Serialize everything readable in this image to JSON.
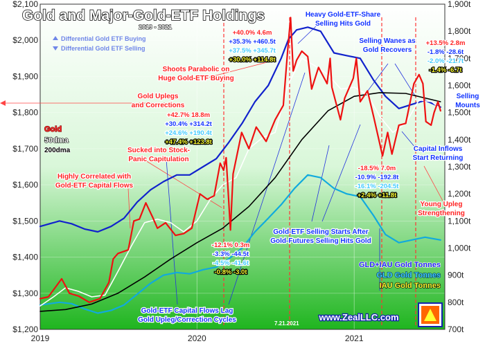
{
  "chart_data": {
    "type": "line",
    "title": "Gold and Major-Gold-ETF Holdings",
    "subtitle": "2019 - 2021",
    "x_ticks": [
      "2019",
      "2020",
      "2021"
    ],
    "x_range": [
      "2019-01-01",
      "2021-07-31"
    ],
    "y_left": {
      "range": [
        1200,
        2100
      ],
      "ticks": [
        1200,
        1300,
        1400,
        1500,
        1600,
        1700,
        1800,
        1900,
        2000,
        2100
      ],
      "tick_labels": [
        "$1,200",
        "$1,300",
        "$1,400",
        "$1,500",
        "$1,600",
        "$1,700",
        "$1,800",
        "$1,900",
        "$2,000",
        "$2,100"
      ]
    },
    "y_right": {
      "range": [
        700,
        1900
      ],
      "ticks": [
        700,
        800,
        900,
        1000,
        1100,
        1200,
        1300,
        1400,
        1500,
        1600,
        1700,
        1800,
        1900
      ],
      "tick_labels": [
        "700t",
        "800t",
        "900t",
        "1,000t",
        "1,100t",
        "1,200t",
        "1,300t",
        "1,400t",
        "1,500t",
        "1,600t",
        "1,700t",
        "1,800t",
        "1,900t"
      ]
    },
    "series": [
      {
        "name": "Gold",
        "axis": "left",
        "color": "#ee1111",
        "points": [
          [
            "2019-01-01",
            1285
          ],
          [
            "2019-01-20",
            1290
          ],
          [
            "2019-02-20",
            1340
          ],
          [
            "2019-03-10",
            1300
          ],
          [
            "2019-04-01",
            1292
          ],
          [
            "2019-04-25",
            1275
          ],
          [
            "2019-05-20",
            1285
          ],
          [
            "2019-06-10",
            1330
          ],
          [
            "2019-06-20",
            1395
          ],
          [
            "2019-07-01",
            1410
          ],
          [
            "2019-07-25",
            1420
          ],
          [
            "2019-08-07",
            1500
          ],
          [
            "2019-08-20",
            1505
          ],
          [
            "2019-09-04",
            1550
          ],
          [
            "2019-09-20",
            1510
          ],
          [
            "2019-10-01",
            1480
          ],
          [
            "2019-10-20",
            1495
          ],
          [
            "2019-11-12",
            1460
          ],
          [
            "2019-12-01",
            1465
          ],
          [
            "2019-12-20",
            1480
          ],
          [
            "2020-01-08",
            1575
          ],
          [
            "2020-01-25",
            1560
          ],
          [
            "2020-02-10",
            1570
          ],
          [
            "2020-02-24",
            1660
          ],
          [
            "2020-03-03",
            1640
          ],
          [
            "2020-03-09",
            1675
          ],
          [
            "2020-03-19",
            1475
          ],
          [
            "2020-03-25",
            1630
          ],
          [
            "2020-04-14",
            1745
          ],
          [
            "2020-05-01",
            1700
          ],
          [
            "2020-05-18",
            1760
          ],
          [
            "2020-06-10",
            1720
          ],
          [
            "2020-07-01",
            1780
          ],
          [
            "2020-07-20",
            1820
          ],
          [
            "2020-07-30",
            1970
          ],
          [
            "2020-08-06",
            2063
          ],
          [
            "2020-08-12",
            1915
          ],
          [
            "2020-08-20",
            1945
          ],
          [
            "2020-09-01",
            1970
          ],
          [
            "2020-09-15",
            1955
          ],
          [
            "2020-09-24",
            1865
          ],
          [
            "2020-10-10",
            1925
          ],
          [
            "2020-10-30",
            1880
          ],
          [
            "2020-11-06",
            1950
          ],
          [
            "2020-11-10",
            1870
          ],
          [
            "2020-11-30",
            1780
          ],
          [
            "2020-12-10",
            1840
          ],
          [
            "2020-12-30",
            1895
          ],
          [
            "2021-01-06",
            1950
          ],
          [
            "2021-01-15",
            1830
          ],
          [
            "2021-02-01",
            1860
          ],
          [
            "2021-02-15",
            1790
          ],
          [
            "2021-03-08",
            1680
          ],
          [
            "2021-03-20",
            1745
          ],
          [
            "2021-03-30",
            1685
          ],
          [
            "2021-04-15",
            1765
          ],
          [
            "2021-05-01",
            1770
          ],
          [
            "2021-05-20",
            1880
          ],
          [
            "2021-06-01",
            1905
          ],
          [
            "2021-06-10",
            1880
          ],
          [
            "2021-06-17",
            1775
          ],
          [
            "2021-06-29",
            1765
          ],
          [
            "2021-07-06",
            1800
          ],
          [
            "2021-07-15",
            1830
          ],
          [
            "2021-07-21",
            1805
          ]
        ]
      },
      {
        "name": "50dma",
        "axis": "left",
        "color": "#ffffff",
        "points": [
          [
            "2019-01-01",
            1265
          ],
          [
            "2019-02-01",
            1290
          ],
          [
            "2019-03-01",
            1315
          ],
          [
            "2019-04-01",
            1305
          ],
          [
            "2019-05-01",
            1290
          ],
          [
            "2019-06-01",
            1295
          ],
          [
            "2019-07-01",
            1360
          ],
          [
            "2019-08-01",
            1430
          ],
          [
            "2019-09-01",
            1495
          ],
          [
            "2019-10-01",
            1505
          ],
          [
            "2019-11-01",
            1495
          ],
          [
            "2019-12-01",
            1470
          ],
          [
            "2020-01-01",
            1500
          ],
          [
            "2020-02-01",
            1560
          ],
          [
            "2020-03-01",
            1600
          ],
          [
            "2020-04-01",
            1620
          ],
          [
            "2020-05-01",
            1700
          ],
          [
            "2020-06-01",
            1730
          ],
          [
            "2020-07-01",
            1745
          ],
          [
            "2020-08-01",
            1880
          ],
          [
            "2020-09-01",
            1950
          ],
          [
            "2020-10-01",
            1930
          ],
          [
            "2020-11-01",
            1905
          ],
          [
            "2020-12-01",
            1865
          ],
          [
            "2021-01-01",
            1870
          ],
          [
            "2021-02-01",
            1850
          ],
          [
            "2021-03-01",
            1790
          ],
          [
            "2021-04-01",
            1745
          ],
          [
            "2021-05-01",
            1770
          ],
          [
            "2021-06-01",
            1835
          ],
          [
            "2021-07-01",
            1830
          ],
          [
            "2021-07-21",
            1810
          ]
        ]
      },
      {
        "name": "200dma",
        "axis": "left",
        "color": "#000000",
        "points": [
          [
            "2019-01-01",
            1250
          ],
          [
            "2019-03-01",
            1255
          ],
          [
            "2019-05-01",
            1270
          ],
          [
            "2019-07-01",
            1300
          ],
          [
            "2019-09-01",
            1345
          ],
          [
            "2019-11-01",
            1395
          ],
          [
            "2020-01-01",
            1440
          ],
          [
            "2020-03-01",
            1480
          ],
          [
            "2020-05-01",
            1540
          ],
          [
            "2020-07-01",
            1620
          ],
          [
            "2020-09-01",
            1725
          ],
          [
            "2020-11-01",
            1805
          ],
          [
            "2021-01-01",
            1845
          ],
          [
            "2021-03-01",
            1855
          ],
          [
            "2021-05-01",
            1853
          ],
          [
            "2021-07-21",
            1830
          ]
        ]
      },
      {
        "name": "GLD+IAU Gold Tonnes",
        "axis": "right",
        "color": "#1122cc",
        "points": [
          [
            "2019-01-01",
            1080
          ],
          [
            "2019-02-15",
            1100
          ],
          [
            "2019-03-15",
            1090
          ],
          [
            "2019-04-15",
            1070
          ],
          [
            "2019-05-15",
            1060
          ],
          [
            "2019-06-15",
            1080
          ],
          [
            "2019-07-15",
            1110
          ],
          [
            "2019-08-15",
            1170
          ],
          [
            "2019-09-15",
            1215
          ],
          [
            "2019-10-15",
            1245
          ],
          [
            "2019-11-15",
            1270
          ],
          [
            "2019-12-15",
            1270
          ],
          [
            "2020-01-15",
            1300
          ],
          [
            "2020-02-15",
            1330
          ],
          [
            "2020-03-15",
            1390
          ],
          [
            "2020-04-15",
            1460
          ],
          [
            "2020-05-15",
            1540
          ],
          [
            "2020-06-15",
            1600
          ],
          [
            "2020-07-15",
            1700
          ],
          [
            "2020-08-01",
            1770
          ],
          [
            "2020-08-20",
            1805
          ],
          [
            "2020-09-15",
            1815
          ],
          [
            "2020-10-15",
            1800
          ],
          [
            "2020-11-15",
            1720
          ],
          [
            "2020-12-15",
            1710
          ],
          [
            "2021-01-15",
            1700
          ],
          [
            "2021-02-15",
            1620
          ],
          [
            "2021-03-15",
            1560
          ],
          [
            "2021-04-15",
            1515
          ],
          [
            "2021-05-15",
            1530
          ],
          [
            "2021-06-15",
            1545
          ],
          [
            "2021-07-21",
            1520
          ]
        ]
      },
      {
        "name": "GLD Gold Tonnes",
        "axis": "right",
        "color": "#11aadd",
        "points": [
          [
            "2019-01-01",
            790
          ],
          [
            "2019-02-15",
            800
          ],
          [
            "2019-03-15",
            795
          ],
          [
            "2019-04-15",
            775
          ],
          [
            "2019-05-15",
            760
          ],
          [
            "2019-06-15",
            770
          ],
          [
            "2019-07-15",
            790
          ],
          [
            "2019-08-15",
            830
          ],
          [
            "2019-09-15",
            870
          ],
          [
            "2019-10-15",
            900
          ],
          [
            "2019-11-15",
            910
          ],
          [
            "2019-12-15",
            905
          ],
          [
            "2020-01-15",
            920
          ],
          [
            "2020-02-15",
            930
          ],
          [
            "2020-03-15",
            960
          ],
          [
            "2020-04-15",
            1000
          ],
          [
            "2020-05-15",
            1060
          ],
          [
            "2020-06-15",
            1110
          ],
          [
            "2020-07-15",
            1160
          ],
          [
            "2020-08-15",
            1220
          ],
          [
            "2020-09-15",
            1270
          ],
          [
            "2020-10-15",
            1260
          ],
          [
            "2020-11-15",
            1220
          ],
          [
            "2020-12-15",
            1200
          ],
          [
            "2021-01-15",
            1190
          ],
          [
            "2021-02-15",
            1120
          ],
          [
            "2021-03-15",
            1050
          ],
          [
            "2021-04-15",
            1020
          ],
          [
            "2021-05-15",
            1030
          ],
          [
            "2021-06-15",
            1040
          ],
          [
            "2021-07-21",
            1030
          ]
        ]
      }
    ],
    "legend": [
      {
        "label": "Differential Gold ETF Buying",
        "color": "#5f7fe8"
      },
      {
        "label": "Differential Gold ETF Selling",
        "color": "#5f7fe8"
      }
    ],
    "left_key": [
      {
        "label": "Gold",
        "color": "#ff3030"
      },
      {
        "label": "50dma",
        "color": "#ffffff"
      },
      {
        "label": "200dma",
        "color": "#000000"
      }
    ],
    "right_key": [
      {
        "label": "GLD+IAU Gold Tonnes",
        "color": "#2222ee"
      },
      {
        "label": "GLD Gold Tonnes",
        "color": "#44ccff"
      },
      {
        "label": "IAU Gold Tonnes",
        "color": "#ffff33"
      }
    ],
    "annotations": [
      {
        "text": "Heavy Gold-ETF-Share",
        "color": "#1133ff"
      },
      {
        "text": "Selling Hits Gold",
        "color": "#1133ff"
      },
      {
        "text": "Selling Wanes as",
        "color": "#1133ff"
      },
      {
        "text": "Gold Recovers",
        "color": "#1133ff"
      },
      {
        "text": "Shoots Parabolic on",
        "color": "#ff2222"
      },
      {
        "text": "Huge Gold-ETF Buying",
        "color": "#ff2222"
      },
      {
        "text": "Gold Uplegs",
        "color": "#ff2222"
      },
      {
        "text": "and Corrections",
        "color": "#ff2222"
      },
      {
        "text": "Sucked into Stock-",
        "color": "#ff2222"
      },
      {
        "text": "Panic Capitulation",
        "color": "#ff2222"
      },
      {
        "text": "Highly Correlated with",
        "color": "#ff2222"
      },
      {
        "text": "Gold-ETF Capital Flows",
        "color": "#ff2222"
      },
      {
        "text": "Gold-ETF Selling Starts After",
        "color": "#1133ff"
      },
      {
        "text": "Gold-Futures Selling Hits Gold",
        "color": "#1133ff"
      },
      {
        "text": "Gold-ETF Capital Flows Lag",
        "color": "#1133ff"
      },
      {
        "text": "Gold Upleg/Correction Cycles",
        "color": "#1133ff"
      },
      {
        "text": "Capital Inflows",
        "color": "#1133ff"
      },
      {
        "text": "Start Returning",
        "color": "#1133ff"
      },
      {
        "text": "Selling",
        "color": "#1133ff"
      },
      {
        "text": "Mounts",
        "color": "#1133ff"
      },
      {
        "text": "Young Upleg",
        "color": "#ff2222"
      },
      {
        "text": "Strengthening",
        "color": "#ff2222"
      }
    ],
    "stat_blocks": [
      [
        "+40.0% 4.6m",
        "+35.3% +460.5t",
        "+37.5% +345.7t",
        "+30.0% +114.8t"
      ],
      [
        "+42.7% 18.8m",
        "+30.4% +314.2t",
        "+24.6% +190.4t",
        "+47.4% +123.8t"
      ],
      [
        "-12.1% 0.3m",
        "-3.3% -44.5t",
        "-4.5% -41.6t",
        "-0.8% -3.0t"
      ],
      [
        "-18.5% 7.0m",
        "-10.9% -192.8t",
        "-16.1% -204.5t",
        "+2.4% +11.8t"
      ],
      [
        "+13.5% 2.8m",
        "-1.8% -28.6t",
        "-2.0% -21.7t",
        "-1.4% -6.7t"
      ]
    ],
    "date_label": "7.21.2021",
    "website": "www.ZealLLC.com",
    "colors": {
      "background": "#22bb22",
      "gradient_light": "#e9ffe9",
      "gold": "#ee1111",
      "gld_iau": "#1122cc",
      "gld": "#11aadd",
      "iau": "#ffff33"
    }
  }
}
